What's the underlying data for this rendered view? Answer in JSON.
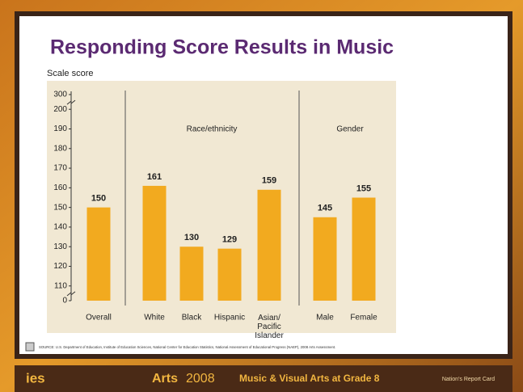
{
  "slide": {
    "title": "Responding Score Results in Music",
    "source": "SOURCE: U.S. Department of Education, Institute of Education Sciences, National Center for Education Statistics, National Assessment of Educational Progress (NAEP), 2008 Arts Assessment.",
    "footer": {
      "logo": "ies",
      "subject": "Arts",
      "year": "2008",
      "caption": "Music & Visual Arts at Grade 8",
      "brand": "Nation's Report Card"
    }
  },
  "chart_data": {
    "type": "bar",
    "y_label": "Scale score",
    "categories": [
      "Overall",
      "White",
      "Black",
      "Hispanic",
      "Asian/ Pacific Islander",
      "Male",
      "Female"
    ],
    "values": [
      150,
      161,
      130,
      129,
      159,
      145,
      155
    ],
    "color": "#f2aa1f",
    "groups": [
      "Race/ethnicity",
      "Gender"
    ],
    "ylim": [
      0,
      300
    ],
    "yticks": [
      0,
      110,
      120,
      130,
      140,
      150,
      160,
      170,
      180,
      190,
      200,
      300
    ],
    "axis_break": true
  }
}
